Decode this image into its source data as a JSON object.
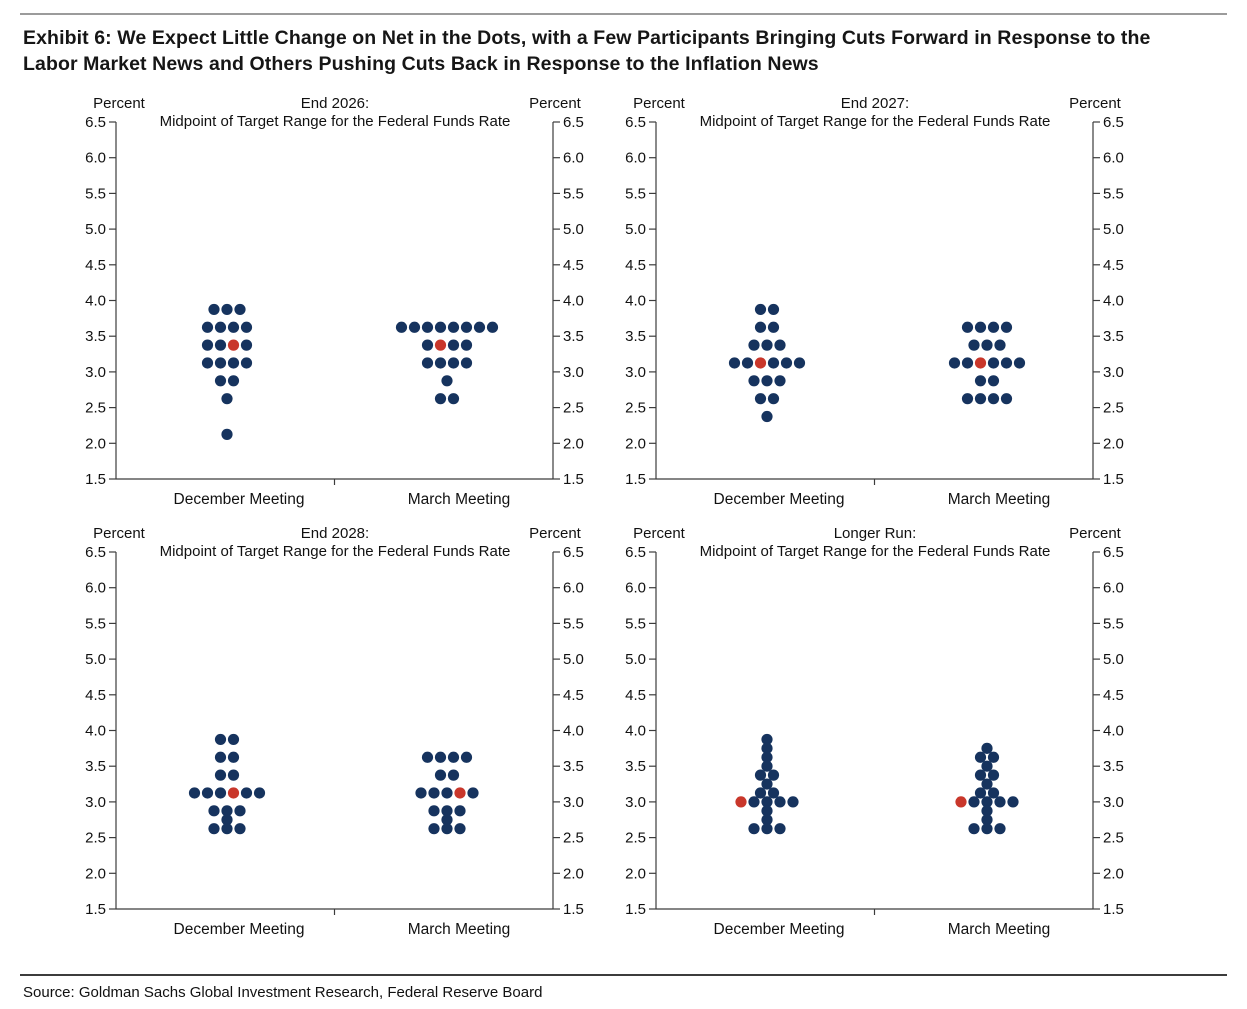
{
  "header": {
    "title_lines": [
      "Exhibit 6: We Expect Little Change on Net in the Dots, with a Few Participants Bringing Cuts Forward in Response to the",
      "Labor Market News and Others Pushing Cuts Back in Response to the Inflation News"
    ]
  },
  "footer": {
    "source": "Source: Goldman Sachs Global Investment Research, Federal Reserve Board"
  },
  "colors": {
    "participant_dot": "#16335e",
    "gs_expected_dot": "#c9372b",
    "axis": "#3c3c3c",
    "text": "#111111"
  },
  "axis": {
    "unit_label": "Percent",
    "ylim": [
      1.5,
      6.5
    ],
    "ytick_labels": [
      "6.5",
      "6.0",
      "5.5",
      "5.0",
      "4.5",
      "4.0",
      "3.5",
      "3.0",
      "2.5",
      "2.0",
      "1.5"
    ]
  },
  "chart_data": [
    {
      "id": "end-2026",
      "type": "scatter",
      "title_line1": "End 2026:",
      "title_line2": "Midpoint of Target Range for the Federal Funds Rate",
      "ylabel": "Percent",
      "ylim": [
        1.5,
        6.5
      ],
      "categories": [
        "December Meeting",
        "March Meeting"
      ],
      "series": [
        {
          "name": "December Meeting",
          "dots": [
            {
              "rate": 3.875,
              "count": 3
            },
            {
              "rate": 3.625,
              "count": 4
            },
            {
              "rate": 3.375,
              "count": 4,
              "red_index": 2
            },
            {
              "rate": 3.125,
              "count": 4
            },
            {
              "rate": 2.875,
              "count": 2
            },
            {
              "rate": 2.625,
              "count": 1
            },
            {
              "rate": 2.125,
              "count": 1
            }
          ]
        },
        {
          "name": "March Meeting",
          "dots": [
            {
              "rate": 3.625,
              "count": 8
            },
            {
              "rate": 3.375,
              "count": 4,
              "red_index": 1
            },
            {
              "rate": 3.125,
              "count": 4
            },
            {
              "rate": 2.875,
              "count": 1
            },
            {
              "rate": 2.625,
              "count": 2
            }
          ]
        }
      ]
    },
    {
      "id": "end-2027",
      "type": "scatter",
      "title_line1": "End 2027:",
      "title_line2": "Midpoint of Target Range for the Federal Funds Rate",
      "ylabel": "Percent",
      "ylim": [
        1.5,
        6.5
      ],
      "categories": [
        "December Meeting",
        "March Meeting"
      ],
      "series": [
        {
          "name": "December Meeting",
          "dots": [
            {
              "rate": 3.875,
              "count": 2
            },
            {
              "rate": 3.625,
              "count": 2
            },
            {
              "rate": 3.375,
              "count": 3
            },
            {
              "rate": 3.125,
              "count": 6,
              "red_index": 2
            },
            {
              "rate": 2.875,
              "count": 3
            },
            {
              "rate": 2.625,
              "count": 2
            },
            {
              "rate": 2.375,
              "count": 1
            }
          ]
        },
        {
          "name": "March Meeting",
          "dots": [
            {
              "rate": 3.625,
              "count": 4
            },
            {
              "rate": 3.375,
              "count": 3
            },
            {
              "rate": 3.125,
              "count": 6,
              "red_index": 2
            },
            {
              "rate": 2.875,
              "count": 2
            },
            {
              "rate": 2.625,
              "count": 4
            }
          ]
        }
      ]
    },
    {
      "id": "end-2028",
      "type": "scatter",
      "title_line1": "End 2028:",
      "title_line2": "Midpoint of Target Range for the Federal Funds Rate",
      "ylabel": "Percent",
      "ylim": [
        1.5,
        6.5
      ],
      "categories": [
        "December Meeting",
        "March Meeting"
      ],
      "series": [
        {
          "name": "December Meeting",
          "dots": [
            {
              "rate": 3.875,
              "count": 2
            },
            {
              "rate": 3.625,
              "count": 2
            },
            {
              "rate": 3.375,
              "count": 2
            },
            {
              "rate": 3.125,
              "count": 6,
              "red_index": 3
            },
            {
              "rate": 2.875,
              "count": 3
            },
            {
              "rate": 2.75,
              "count": 1
            },
            {
              "rate": 2.625,
              "count": 3
            }
          ]
        },
        {
          "name": "March Meeting",
          "dots": [
            {
              "rate": 3.625,
              "count": 4
            },
            {
              "rate": 3.375,
              "count": 2
            },
            {
              "rate": 3.125,
              "count": 5,
              "red_index": 3
            },
            {
              "rate": 2.875,
              "count": 3
            },
            {
              "rate": 2.75,
              "count": 1
            },
            {
              "rate": 2.625,
              "count": 3
            }
          ]
        }
      ]
    },
    {
      "id": "longer-run",
      "type": "scatter",
      "title_line1": "Longer Run:",
      "title_line2": "Midpoint of Target Range for the Federal Funds Rate",
      "ylabel": "Percent",
      "ylim": [
        1.5,
        6.5
      ],
      "categories": [
        "December Meeting",
        "March Meeting"
      ],
      "series": [
        {
          "name": "December Meeting",
          "dots": [
            {
              "rate": 3.875,
              "count": 1
            },
            {
              "rate": 3.75,
              "count": 1
            },
            {
              "rate": 3.625,
              "count": 1
            },
            {
              "rate": 3.5,
              "count": 1
            },
            {
              "rate": 3.375,
              "count": 2
            },
            {
              "rate": 3.25,
              "count": 1
            },
            {
              "rate": 3.125,
              "count": 2
            },
            {
              "rate": 3.0,
              "count": 5,
              "red_index": 0
            },
            {
              "rate": 2.875,
              "count": 1
            },
            {
              "rate": 2.75,
              "count": 1
            },
            {
              "rate": 2.625,
              "count": 3
            }
          ]
        },
        {
          "name": "March Meeting",
          "dots": [
            {
              "rate": 3.75,
              "count": 1
            },
            {
              "rate": 3.625,
              "count": 2
            },
            {
              "rate": 3.5,
              "count": 1
            },
            {
              "rate": 3.375,
              "count": 2
            },
            {
              "rate": 3.25,
              "count": 1
            },
            {
              "rate": 3.125,
              "count": 2
            },
            {
              "rate": 3.0,
              "count": 5,
              "red_index": 0
            },
            {
              "rate": 2.875,
              "count": 1
            },
            {
              "rate": 2.75,
              "count": 1
            },
            {
              "rate": 2.625,
              "count": 3
            }
          ]
        }
      ]
    }
  ]
}
